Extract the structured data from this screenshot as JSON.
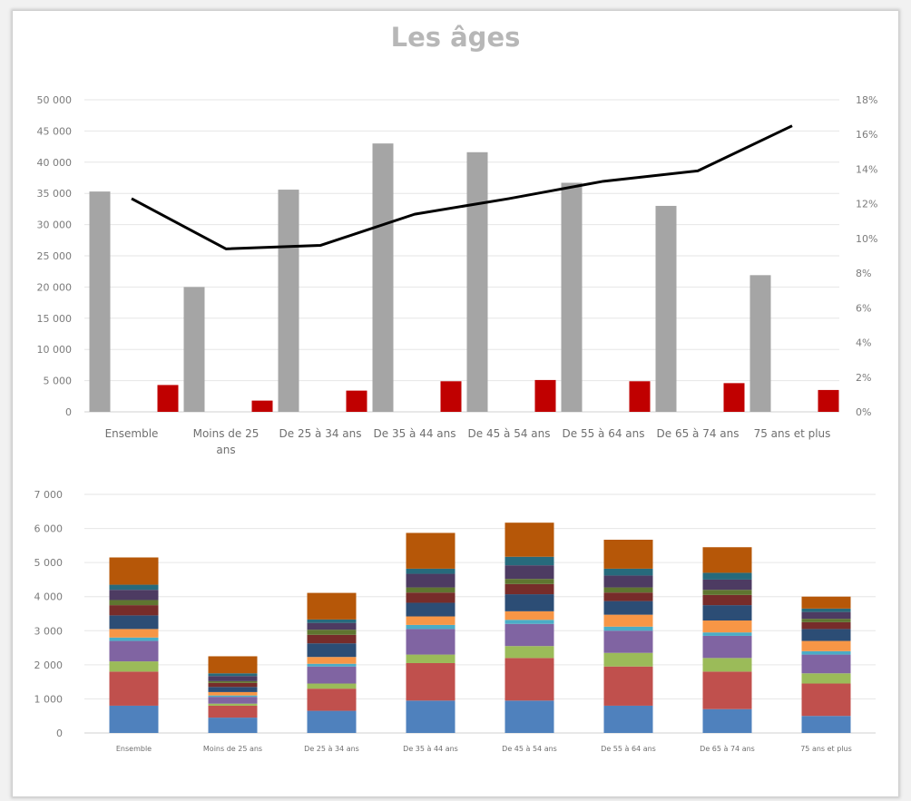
{
  "chart_data": [
    {
      "type": "bar",
      "title": "Les âges",
      "categories": [
        "Ensemble",
        "Moins de 25 ans",
        "De 25 à 34 ans",
        "De 35 à 44 ans",
        "De 45 à 54 ans",
        "De 55 à 64 ans",
        "De 65 à 74 ans",
        "75 ans et plus"
      ],
      "y_ticks": [
        "0",
        "5 000",
        "10 000",
        "15 000",
        "20 000",
        "25 000",
        "30 000",
        "35 000",
        "40 000",
        "45 000",
        "50 000"
      ],
      "y2_ticks": [
        "0%",
        "2%",
        "4%",
        "6%",
        "8%",
        "10%",
        "12%",
        "14%",
        "16%",
        "18%"
      ],
      "ylim": [
        0,
        50000
      ],
      "y2lim": [
        0,
        18
      ],
      "grid": true,
      "series": [
        {
          "type": "bar",
          "axis": "left",
          "color": "#a5a5a5",
          "values": [
            35300,
            20000,
            35600,
            43000,
            41600,
            36700,
            33000,
            21900
          ]
        },
        {
          "type": "bar",
          "axis": "left",
          "color": "#c00000",
          "values": [
            4300,
            1800,
            3400,
            4900,
            5100,
            4900,
            4600,
            3500
          ]
        },
        {
          "type": "line",
          "axis": "right",
          "color": "#000000",
          "values": [
            12.3,
            9.4,
            9.6,
            11.4,
            12.3,
            13.3,
            13.9,
            16.5
          ]
        }
      ]
    },
    {
      "type": "bar",
      "stacked": true,
      "categories": [
        "Ensemble",
        "Moins de 25 ans",
        "De 25 à 34 ans",
        "De 35 à 44 ans",
        "De 45 à 54 ans",
        "De 55 à 64 ans",
        "De 65 à 74 ans",
        "75 ans et plus"
      ],
      "y_ticks": [
        "0",
        "1 000",
        "2 000",
        "3 000",
        "4 000",
        "5 000",
        "6 000",
        "7 000"
      ],
      "ylim": [
        0,
        7000
      ],
      "grid": true,
      "series": [
        {
          "color": "#4f81bd",
          "values": [
            800,
            450,
            650,
            950,
            950,
            800,
            700,
            500
          ]
        },
        {
          "color": "#c0504d",
          "values": [
            1000,
            350,
            650,
            1100,
            1250,
            1150,
            1100,
            950
          ]
        },
        {
          "color": "#9bbb59",
          "values": [
            300,
            60,
            150,
            250,
            350,
            400,
            400,
            300
          ]
        },
        {
          "color": "#8064a2",
          "values": [
            600,
            200,
            500,
            750,
            650,
            650,
            650,
            550
          ]
        },
        {
          "color": "#4bacc6",
          "values": [
            100,
            40,
            80,
            120,
            120,
            120,
            100,
            100
          ]
        },
        {
          "color": "#f79646",
          "values": [
            250,
            100,
            200,
            250,
            250,
            350,
            350,
            300
          ]
        },
        {
          "color": "#2c4d75",
          "values": [
            400,
            150,
            400,
            400,
            500,
            400,
            450,
            350
          ]
        },
        {
          "color": "#772c2a",
          "values": [
            300,
            120,
            250,
            300,
            300,
            250,
            300,
            200
          ]
        },
        {
          "color": "#5f7530",
          "values": [
            150,
            50,
            150,
            150,
            150,
            150,
            150,
            100
          ]
        },
        {
          "color": "#4d3b62",
          "values": [
            300,
            150,
            200,
            400,
            400,
            350,
            300,
            200
          ]
        },
        {
          "color": "#276a7c",
          "values": [
            150,
            80,
            100,
            150,
            250,
            200,
            200,
            100
          ]
        },
        {
          "color": "#b65708",
          "values": [
            800,
            500,
            780,
            1050,
            1000,
            850,
            750,
            350
          ]
        }
      ]
    }
  ]
}
